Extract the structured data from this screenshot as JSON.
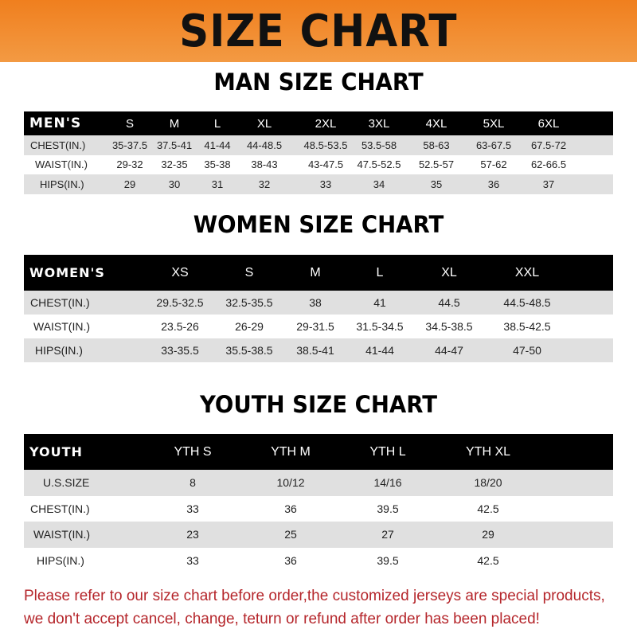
{
  "banner": {
    "title": "SIZE CHART",
    "color": "#f08b2c"
  },
  "men": {
    "title": "MAN SIZE CHART",
    "header": [
      "MEN'S",
      "S",
      "M",
      "L",
      "XL",
      "2XL",
      "3XL",
      "4XL",
      "5XL",
      "6XL"
    ],
    "rows": [
      [
        "CHEST(IN.)",
        "35-37.5",
        "37.5-41",
        "41-44",
        "44-48.5",
        "48.5-53.5",
        "53.5-58",
        "58-63",
        "63-67.5",
        "67.5-72"
      ],
      [
        "WAIST(IN.)",
        "29-32",
        "32-35",
        "35-38",
        "38-43",
        "43-47.5",
        "47.5-52.5",
        "52.5-57",
        "57-62",
        "62-66.5"
      ],
      [
        "HIPS(IN.)",
        "29",
        "30",
        "31",
        "32",
        "33",
        "34",
        "35",
        "36",
        "37"
      ]
    ]
  },
  "women": {
    "title": "WOMEN SIZE CHART",
    "header": [
      "WOMEN'S",
      "XS",
      "S",
      "M",
      "L",
      "XL",
      "XXL"
    ],
    "rows": [
      [
        "CHEST(IN.)",
        "29.5-32.5",
        "32.5-35.5",
        "38",
        "41",
        "44.5",
        "44.5-48.5"
      ],
      [
        "WAIST(IN.)",
        "23.5-26",
        "26-29",
        "29-31.5",
        "31.5-34.5",
        "34.5-38.5",
        "38.5-42.5"
      ],
      [
        "HIPS(IN.)",
        "33-35.5",
        "35.5-38.5",
        "38.5-41",
        "41-44",
        "44-47",
        "47-50"
      ]
    ]
  },
  "youth": {
    "title": "YOUTH SIZE CHART",
    "header": [
      "YOUTH",
      "YTH S",
      "YTH M",
      "YTH L",
      "YTH XL"
    ],
    "rows": [
      [
        "U.S.SIZE",
        "8",
        "10/12",
        "14/16",
        "18/20"
      ],
      [
        "CHEST(IN.)",
        "33",
        "36",
        "39.5",
        "42.5"
      ],
      [
        "WAIST(IN.)",
        "23",
        "25",
        "27",
        "29"
      ],
      [
        "HIPS(IN.)",
        "33",
        "36",
        "39.5",
        "42.5"
      ]
    ]
  },
  "note": {
    "line1": "Please refer to our size chart before order,the customized jerseys are special products,",
    "line2": "we don't accept cancel, change, teturn or refund after order has been placed!",
    "color": "#b5262b"
  }
}
